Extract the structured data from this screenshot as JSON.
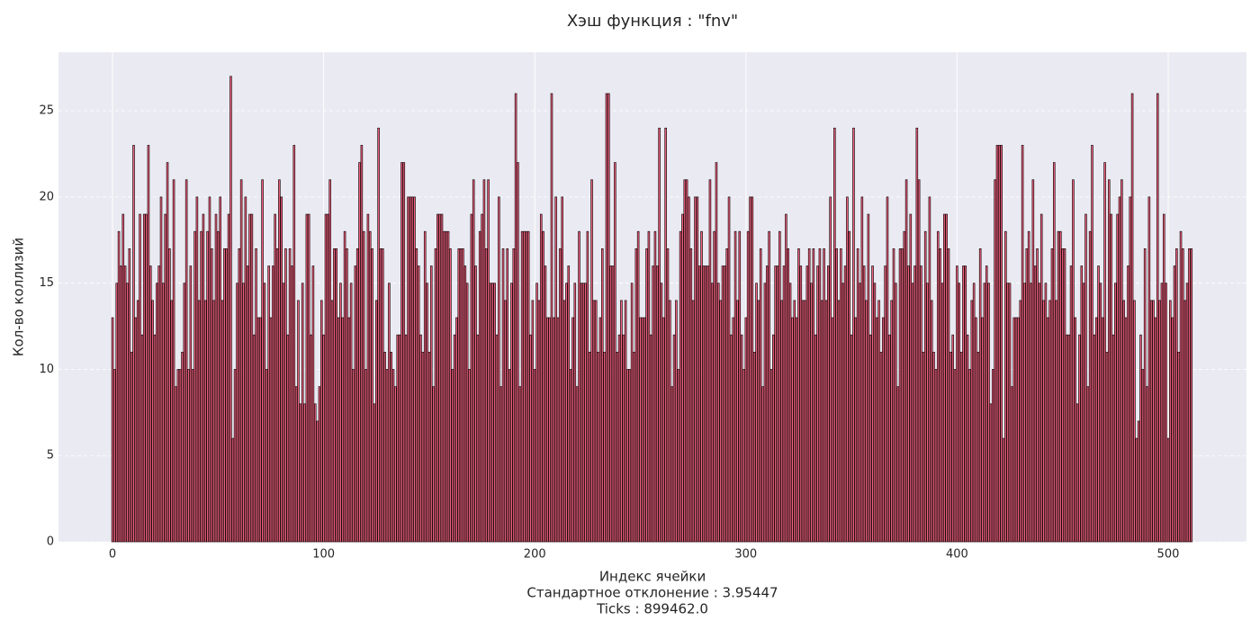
{
  "chart_data": {
    "type": "bar",
    "title": "Хэш функция : \"fnv\"",
    "ylabel": "Кол-во коллизий",
    "xlabel": [
      "Индекс ячейки",
      "Стандартное отклонение : 3.95447",
      "Ticks : 899462.0"
    ],
    "color": "#f3627f",
    "edgecolor": "#1a0a0e",
    "background": "#eaeaf2",
    "grid": true,
    "xlim": [
      -25.6,
      537.1
    ],
    "ylim": [
      0,
      28.4
    ],
    "xticks": [
      0,
      100,
      200,
      300,
      400,
      500
    ],
    "yticks": [
      0,
      5,
      10,
      15,
      20,
      25
    ],
    "x": [
      0,
      1,
      2,
      3,
      4,
      5,
      6,
      7,
      8,
      9,
      10,
      11,
      12,
      13,
      14,
      15,
      16,
      17,
      18,
      19,
      20,
      21,
      22,
      23,
      24,
      25,
      26,
      27,
      28,
      29,
      30,
      31,
      32,
      33,
      34,
      35,
      36,
      37,
      38,
      39,
      40,
      41,
      42,
      43,
      44,
      45,
      46,
      47,
      48,
      49,
      50,
      51,
      52,
      53,
      54,
      55,
      56,
      57,
      58,
      59,
      60,
      61,
      62,
      63,
      64,
      65,
      66,
      67,
      68,
      69,
      70,
      71,
      72,
      73,
      74,
      75,
      76,
      77,
      78,
      79,
      80,
      81,
      82,
      83,
      84,
      85,
      86,
      87,
      88,
      89,
      90,
      91,
      92,
      93,
      94,
      95,
      96,
      97,
      98,
      99,
      100,
      101,
      102,
      103,
      104,
      105,
      106,
      107,
      108,
      109,
      110,
      111,
      112,
      113,
      114,
      115,
      116,
      117,
      118,
      119,
      120,
      121,
      122,
      123,
      124,
      125,
      126,
      127,
      128,
      129,
      130,
      131,
      132,
      133,
      134,
      135,
      136,
      137,
      138,
      139,
      140,
      141,
      142,
      143,
      144,
      145,
      146,
      147,
      148,
      149,
      150,
      151,
      152,
      153,
      154,
      155,
      156,
      157,
      158,
      159,
      160,
      161,
      162,
      163,
      164,
      165,
      166,
      167,
      168,
      169,
      170,
      171,
      172,
      173,
      174,
      175,
      176,
      177,
      178,
      179,
      180,
      181,
      182,
      183,
      184,
      185,
      186,
      187,
      188,
      189,
      190,
      191,
      192,
      193,
      194,
      195,
      196,
      197,
      198,
      199,
      200,
      201,
      202,
      203,
      204,
      205,
      206,
      207,
      208,
      209,
      210,
      211,
      212,
      213,
      214,
      215,
      216,
      217,
      218,
      219,
      220,
      221,
      222,
      223,
      224,
      225,
      226,
      227,
      228,
      229,
      230,
      231,
      232,
      233,
      234,
      235,
      236,
      237,
      238,
      239,
      240,
      241,
      242,
      243,
      244,
      245,
      246,
      247,
      248,
      249,
      250,
      251,
      252,
      253,
      254,
      255,
      256,
      257,
      258,
      259,
      260,
      261,
      262,
      263,
      264,
      265,
      266,
      267,
      268,
      269,
      270,
      271,
      272,
      273,
      274,
      275,
      276,
      277,
      278,
      279,
      280,
      281,
      282,
      283,
      284,
      285,
      286,
      287,
      288,
      289,
      290,
      291,
      292,
      293,
      294,
      295,
      296,
      297,
      298,
      299,
      300,
      301,
      302,
      303,
      304,
      305,
      306,
      307,
      308,
      309,
      310,
      311,
      312,
      313,
      314,
      315,
      316,
      317,
      318,
      319,
      320,
      321,
      322,
      323,
      324,
      325,
      326,
      327,
      328,
      329,
      330,
      331,
      332,
      333,
      334,
      335,
      336,
      337,
      338,
      339,
      340,
      341,
      342,
      343,
      344,
      345,
      346,
      347,
      348,
      349,
      350,
      351,
      352,
      353,
      354,
      355,
      356,
      357,
      358,
      359,
      360,
      361,
      362,
      363,
      364,
      365,
      366,
      367,
      368,
      369,
      370,
      371,
      372,
      373,
      374,
      375,
      376,
      377,
      378,
      379,
      380,
      381,
      382,
      383,
      384,
      385,
      386,
      387,
      388,
      389,
      390,
      391,
      392,
      393,
      394,
      395,
      396,
      397,
      398,
      399,
      400,
      401,
      402,
      403,
      404,
      405,
      406,
      407,
      408,
      409,
      410,
      411,
      412,
      413,
      414,
      415,
      416,
      417,
      418,
      419,
      420,
      421,
      422,
      423,
      424,
      425,
      426,
      427,
      428,
      429,
      430,
      431,
      432,
      433,
      434,
      435,
      436,
      437,
      438,
      439,
      440,
      441,
      442,
      443,
      444,
      445,
      446,
      447,
      448,
      449,
      450,
      451,
      452,
      453,
      454,
      455,
      456,
      457,
      458,
      459,
      460,
      461,
      462,
      463,
      464,
      465,
      466,
      467,
      468,
      469,
      470,
      471,
      472,
      473,
      474,
      475,
      476,
      477,
      478,
      479,
      480,
      481,
      482,
      483,
      484,
      485,
      486,
      487,
      488,
      489,
      490,
      491,
      492,
      493,
      494,
      495,
      496,
      497,
      498,
      499,
      500,
      501,
      502,
      503,
      504,
      505,
      506,
      507,
      508,
      509,
      510,
      511
    ],
    "values": [
      13,
      10,
      15,
      18,
      16,
      19,
      16,
      15,
      17,
      11,
      23,
      13,
      14,
      19,
      12,
      19,
      19,
      23,
      16,
      14,
      12,
      15,
      16,
      20,
      15,
      19,
      22,
      17,
      14,
      21,
      9,
      10,
      10,
      11,
      15,
      21,
      10,
      16,
      10,
      18,
      20,
      14,
      18,
      19,
      14,
      18,
      20,
      17,
      14,
      19,
      18,
      20,
      14,
      17,
      17,
      19,
      27,
      6,
      10,
      15,
      17,
      21,
      15,
      20,
      16,
      19,
      19,
      12,
      17,
      13,
      13,
      21,
      15,
      10,
      16,
      13,
      16,
      19,
      17,
      21,
      20,
      15,
      17,
      12,
      17,
      16,
      23,
      9,
      14,
      8,
      15,
      8,
      19,
      19,
      12,
      16,
      8,
      7,
      9,
      14,
      12,
      19,
      19,
      21,
      14,
      17,
      17,
      13,
      15,
      13,
      18,
      17,
      13,
      15,
      10,
      16,
      17,
      22,
      23,
      18,
      10,
      19,
      18,
      17,
      8,
      14,
      24,
      17,
      17,
      11,
      10,
      15,
      11,
      10,
      9,
      12,
      12,
      22,
      22,
      12,
      20,
      20,
      20,
      20,
      17,
      16,
      12,
      11,
      18,
      15,
      11,
      16,
      9,
      17,
      19,
      19,
      19,
      18,
      18,
      18,
      17,
      10,
      12,
      13,
      17,
      17,
      17,
      16,
      15,
      10,
      19,
      21,
      16,
      12,
      18,
      19,
      21,
      17,
      21,
      15,
      15,
      15,
      12,
      20,
      9,
      17,
      14,
      17,
      10,
      15,
      17,
      26,
      22,
      9,
      18,
      18,
      18,
      18,
      12,
      14,
      10,
      15,
      14,
      19,
      18,
      16,
      13,
      13,
      26,
      13,
      20,
      13,
      17,
      20,
      14,
      15,
      16,
      10,
      13,
      15,
      9,
      18,
      15,
      15,
      15,
      18,
      11,
      21,
      14,
      14,
      11,
      13,
      17,
      11,
      26,
      26,
      16,
      16,
      22,
      11,
      12,
      14,
      12,
      14,
      10,
      10,
      15,
      11,
      17,
      18,
      13,
      13,
      13,
      17,
      18,
      12,
      16,
      18,
      16,
      24,
      15,
      13,
      24,
      17,
      14,
      9,
      12,
      14,
      10,
      18,
      19,
      21,
      21,
      20,
      17,
      14,
      20,
      20,
      16,
      18,
      16,
      16,
      16,
      21,
      15,
      18,
      22,
      15,
      14,
      16,
      16,
      17,
      20,
      12,
      13,
      18,
      14,
      18,
      12,
      10,
      13,
      18,
      20,
      20,
      11,
      15,
      14,
      17,
      9,
      15,
      16,
      18,
      10,
      12,
      16,
      16,
      18,
      14,
      16,
      19,
      17,
      15,
      13,
      14,
      13,
      17,
      16,
      14,
      14,
      16,
      17,
      15,
      17,
      12,
      16,
      17,
      14,
      17,
      14,
      16,
      20,
      13,
      24,
      17,
      14,
      17,
      15,
      16,
      20,
      18,
      12,
      24,
      13,
      17,
      15,
      20,
      16,
      14,
      19,
      12,
      16,
      15,
      13,
      14,
      11,
      13,
      16,
      20,
      12,
      14,
      17,
      15,
      9,
      17,
      17,
      18,
      21,
      16,
      19,
      15,
      16,
      24,
      21,
      16,
      11,
      18,
      15,
      20,
      14,
      11,
      10,
      18,
      17,
      15,
      19,
      19,
      17,
      11,
      12,
      10,
      16,
      15,
      11,
      16,
      16,
      12,
      10,
      14,
      15,
      13,
      11,
      17,
      13,
      15,
      16,
      15,
      8,
      10,
      21,
      23,
      23,
      23,
      6,
      18,
      15,
      15,
      9,
      13,
      13,
      13,
      14,
      23,
      15,
      17,
      18,
      15,
      21,
      16,
      17,
      15,
      19,
      14,
      15,
      13,
      14,
      17,
      22,
      14,
      18,
      18,
      17,
      17,
      12,
      12,
      16,
      21,
      13,
      8,
      12,
      16,
      15,
      19,
      9,
      18,
      23,
      12,
      13,
      16,
      15,
      13,
      22,
      11,
      21,
      19,
      12,
      15,
      19,
      20,
      21,
      14,
      13,
      16,
      20,
      26,
      14,
      6,
      7,
      12,
      10,
      17,
      9,
      20,
      14,
      14,
      13,
      26,
      14,
      15,
      19,
      15,
      6,
      14,
      13,
      16,
      17,
      11,
      18,
      17,
      14,
      15,
      17,
      17
    ]
  }
}
